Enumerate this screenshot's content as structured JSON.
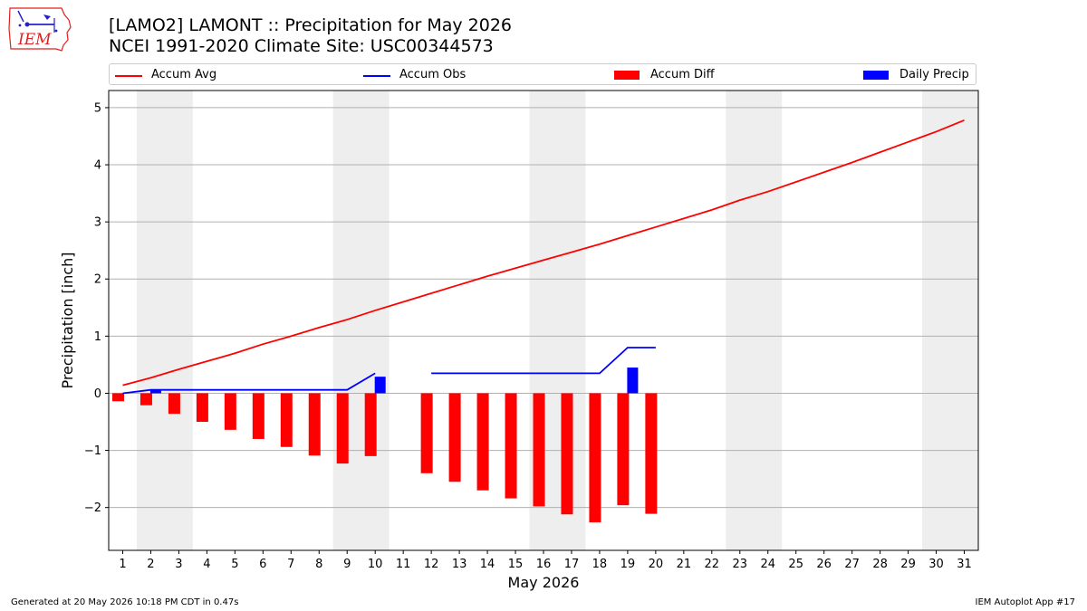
{
  "header": {
    "title_line1": "[LAMO2] LAMONT :: Precipitation for May 2026",
    "title_line2": "NCEI 1991-2020 Climate Site: USC00344573",
    "logo_text": "IEM"
  },
  "footer": {
    "generated": "Generated at 20 May 2026 10:18 PM CDT in 0.47s",
    "app": "IEM Autoplot App #17"
  },
  "colors": {
    "avg": "#ff0000",
    "obs": "#0000ff",
    "diff": "#ff0000",
    "daily": "#0000ff",
    "weekend": "#eeeeee",
    "grid": "#b0b0b0"
  },
  "chart_data": {
    "type": "bar",
    "xlabel": "May 2026",
    "ylabel": "Precipitation [inch]",
    "xlim": [
      0.5,
      31.5
    ],
    "ylim": [
      -2.75,
      5.3
    ],
    "yticks": [
      -2,
      -1,
      0,
      1,
      2,
      3,
      4,
      5
    ],
    "ytick_labels": [
      "−2",
      "−1",
      "0",
      "1",
      "2",
      "3",
      "4",
      "5"
    ],
    "grid": "horizontal",
    "legend_position": "top",
    "days": [
      "1",
      "2",
      "3",
      "4",
      "5",
      "6",
      "7",
      "8",
      "9",
      "10",
      "11",
      "12",
      "13",
      "14",
      "15",
      "16",
      "17",
      "18",
      "19",
      "20",
      "21",
      "22",
      "23",
      "24",
      "25",
      "26",
      "27",
      "28",
      "29",
      "30",
      "31"
    ],
    "weekend_shading": [
      [
        2,
        3
      ],
      [
        9,
        10
      ],
      [
        16,
        17
      ],
      [
        23,
        24
      ],
      [
        30,
        31
      ]
    ],
    "series": [
      {
        "name": "Accum Avg",
        "kind": "line",
        "x": [
          1,
          2,
          3,
          4,
          5,
          6,
          7,
          8,
          9,
          10,
          11,
          12,
          13,
          14,
          15,
          16,
          17,
          18,
          19,
          20,
          21,
          22,
          23,
          24,
          25,
          26,
          27,
          28,
          29,
          30,
          31
        ],
        "values": [
          0.14,
          0.27,
          0.42,
          0.56,
          0.7,
          0.86,
          1.0,
          1.15,
          1.29,
          1.45,
          1.6,
          1.75,
          1.9,
          2.05,
          2.19,
          2.33,
          2.47,
          2.61,
          2.76,
          2.91,
          3.06,
          3.21,
          3.38,
          3.53,
          3.7,
          3.87,
          4.04,
          4.22,
          4.4,
          4.58,
          4.78
        ]
      },
      {
        "name": "Accum Obs",
        "kind": "line",
        "segments": [
          {
            "x": [
              1,
              2,
              3,
              4,
              5,
              6,
              7,
              8,
              9,
              10
            ],
            "values": [
              0.0,
              0.06,
              0.06,
              0.06,
              0.06,
              0.06,
              0.06,
              0.06,
              0.06,
              0.35
            ]
          },
          {
            "x": [
              12,
              13,
              14,
              15,
              16,
              17,
              18,
              19,
              20
            ],
            "values": [
              0.35,
              0.35,
              0.35,
              0.35,
              0.35,
              0.35,
              0.35,
              0.8,
              0.8
            ]
          }
        ]
      },
      {
        "name": "Accum Diff",
        "kind": "bar",
        "x": [
          1,
          2,
          3,
          4,
          5,
          6,
          7,
          8,
          9,
          10,
          12,
          13,
          14,
          15,
          16,
          17,
          18,
          19,
          20
        ],
        "values": [
          -0.14,
          -0.21,
          -0.36,
          -0.5,
          -0.64,
          -0.8,
          -0.94,
          -1.09,
          -1.23,
          -1.1,
          -1.4,
          -1.55,
          -1.7,
          -1.84,
          -1.98,
          -2.12,
          -2.26,
          -1.96,
          -2.11
        ]
      },
      {
        "name": "Daily Precip",
        "kind": "bar",
        "x": [
          2,
          10,
          19
        ],
        "values": [
          0.06,
          0.29,
          0.45
        ]
      }
    ]
  }
}
